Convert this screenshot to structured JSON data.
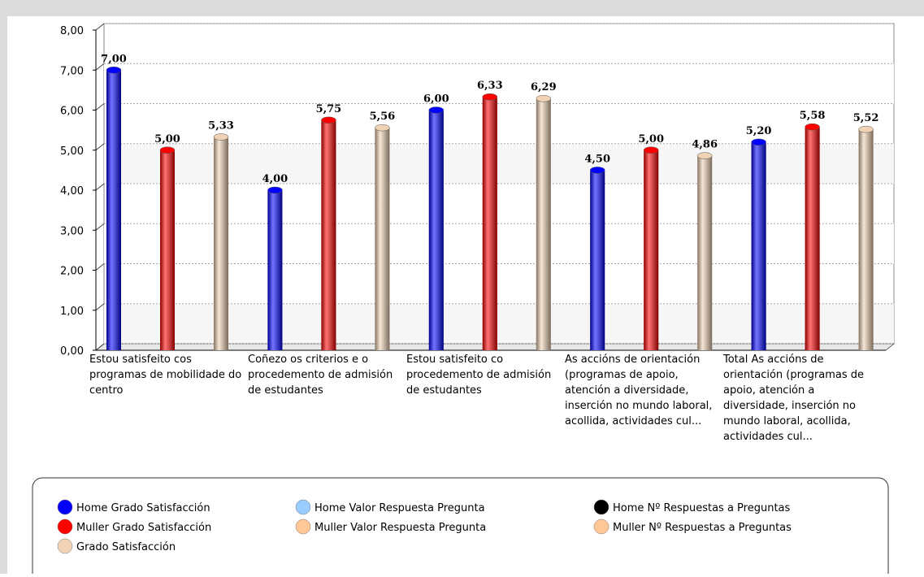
{
  "chart_data": {
    "type": "bar",
    "categories": [
      "Estou satisfeito cos programas de mobilidade do centro",
      "Coñezo os criterios e o procedemento de admisión de estudantes",
      "Estou satisfeito co procedemento de admisión de estudantes",
      "As accións de orientación (programas de apoio, atención a diversidade, inserción no mundo laboral, acollida, actividades cul...",
      "Total As accións de orientación (programas de apoio, atención a diversidade, inserción no mundo laboral, acollida, actividades cul..."
    ],
    "series": [
      {
        "name": "Home Grado Satisfacción",
        "color": "#0000ff",
        "values": [
          7,
          4,
          6,
          4.5,
          5.2
        ],
        "value_labels": [
          "7,00",
          "4,00",
          "6,00",
          "4,50",
          "5,20"
        ]
      },
      {
        "name": "Home Valor Respuesta Pregunta",
        "color": "#99ccff",
        "values": [
          null,
          null,
          null,
          null,
          null
        ]
      },
      {
        "name": "Home Nº Respuestas a Preguntas",
        "color": "#000000",
        "values": [
          null,
          null,
          null,
          null,
          null
        ]
      },
      {
        "name": "Muller Grado Satisfacción",
        "color": "#ff0000",
        "values": [
          5,
          5.75,
          6.33,
          5,
          5.58
        ],
        "value_labels": [
          "5,00",
          "5,75",
          "6,33",
          "5,00",
          "5,58"
        ]
      },
      {
        "name": "Muller Valor Respuesta Pregunta",
        "color": "#ffc896",
        "values": [
          null,
          null,
          null,
          null,
          null
        ]
      },
      {
        "name": "Muller Nº Respuestas a Preguntas",
        "color": "#ffc896",
        "values": [
          null,
          null,
          null,
          null,
          null
        ]
      },
      {
        "name": "Grado Satisfacción",
        "color": "#f0d2b4",
        "values": [
          5.33,
          5.56,
          6.29,
          4.86,
          5.52
        ],
        "value_labels": [
          "5,33",
          "5,56",
          "6,29",
          "4,86",
          "5,52"
        ]
      }
    ],
    "ylim": [
      0,
      8
    ],
    "yticks": [
      {
        "value": 0,
        "label": "0,00"
      },
      {
        "value": 1,
        "label": "1,00"
      },
      {
        "value": 2,
        "label": "2,00"
      },
      {
        "value": 3,
        "label": "3,00"
      },
      {
        "value": 4,
        "label": "4,00"
      },
      {
        "value": 5,
        "label": "5,00"
      },
      {
        "value": 6,
        "label": "6,00"
      },
      {
        "value": 7,
        "label": "7,00"
      },
      {
        "value": 8,
        "label": "8,00"
      }
    ],
    "grid": true
  }
}
